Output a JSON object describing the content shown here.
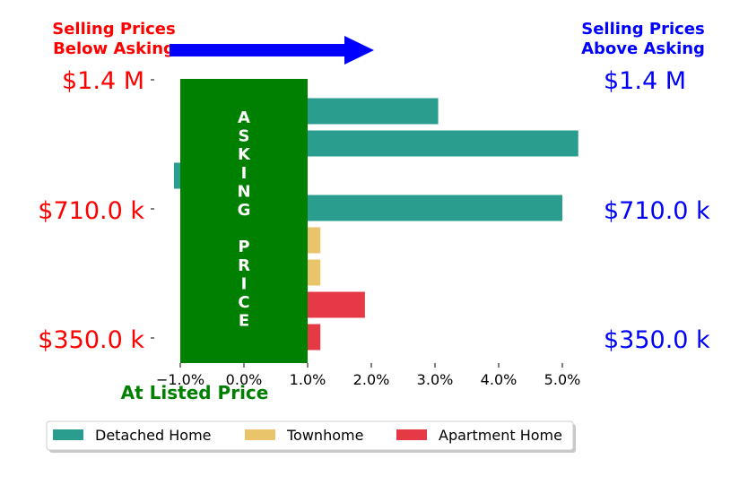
{
  "chart_data": {
    "type": "bar",
    "orientation": "horizontal",
    "header_left": [
      "Selling Prices",
      "Below Asking"
    ],
    "header_right": [
      "Selling Prices",
      "Above Asking"
    ],
    "y_labels_left": [
      "$1.4 M",
      "$710.0 k",
      "$350.0 k"
    ],
    "y_labels_right": [
      "$1.4 M",
      "$710.0 k",
      "$350.0 k"
    ],
    "x_ticks": [
      "−1.0%",
      "0.0%",
      "1.0%",
      "2.0%",
      "3.0%",
      "4.0%",
      "5.0%"
    ],
    "x_tick_values": [
      -1,
      0,
      1,
      2,
      3,
      4,
      5
    ],
    "xlim": [
      -1.1,
      5.3
    ],
    "bars": [
      {
        "value": 3.05,
        "category": "Detached Home"
      },
      {
        "value": 5.25,
        "category": "Detached Home"
      },
      {
        "value": -1.1,
        "category": "Detached Home"
      },
      {
        "value": 5.0,
        "category": "Detached Home"
      },
      {
        "value": 1.2,
        "category": "Townhome"
      },
      {
        "value": 1.2,
        "category": "Townhome"
      },
      {
        "value": 1.9,
        "category": "Apartment Home"
      },
      {
        "value": 1.2,
        "category": "Apartment Home"
      }
    ],
    "asking_band": {
      "from": -1.0,
      "to": 1.0,
      "label": "ASKING PRICE",
      "color": "#008000"
    },
    "asking_letters": [
      "A",
      "S",
      "K",
      "I",
      "N",
      "G",
      "",
      "P",
      "R",
      "I",
      "C",
      "E"
    ],
    "xlabel": "At Listed Price",
    "legend": {
      "placement": "bottom",
      "items": [
        {
          "name": "Detached Home",
          "color": "#2a9d8f"
        },
        {
          "name": "Townhome",
          "color": "#e9c46a"
        },
        {
          "name": "Apartment Home",
          "color": "#e63946"
        }
      ]
    },
    "colors": {
      "left_text": "#ff0000",
      "right_text": "#0000ff",
      "arrow": "#0000ff",
      "xlabel": "#008000"
    }
  }
}
